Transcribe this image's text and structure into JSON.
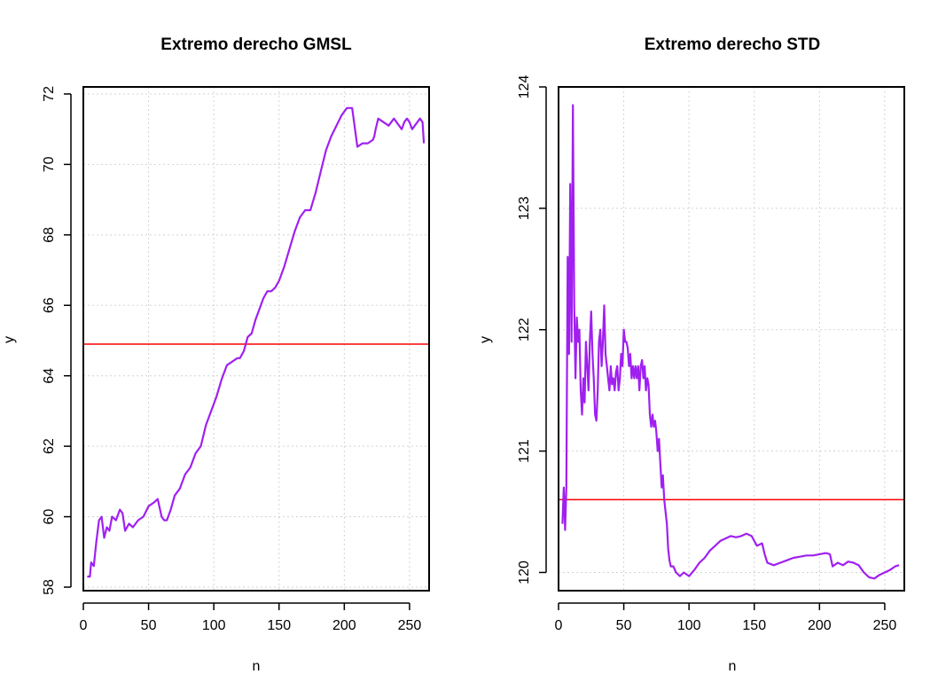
{
  "chart_data": [
    {
      "type": "line",
      "title": "Extremo derecho GMSL",
      "xlabel": "n",
      "ylabel": "y",
      "xlim": [
        0,
        265
      ],
      "ylim": [
        57.9,
        72.2
      ],
      "xticks": [
        0,
        50,
        100,
        150,
        200,
        250
      ],
      "yticks": [
        58,
        60,
        62,
        64,
        66,
        68,
        70,
        72
      ],
      "grid": true,
      "hline": {
        "y": 64.9,
        "color": "#ff0000"
      },
      "series": [
        {
          "color": "#a020f0",
          "x": [
            3,
            5,
            6,
            8,
            10,
            12,
            14,
            16,
            18,
            20,
            22,
            25,
            28,
            30,
            32,
            35,
            38,
            42,
            46,
            50,
            54,
            57,
            60,
            62,
            64,
            67,
            70,
            74,
            78,
            82,
            86,
            90,
            94,
            98,
            102,
            106,
            110,
            114,
            118,
            120,
            123,
            126,
            129,
            132,
            135,
            138,
            141,
            144,
            147,
            150,
            154,
            158,
            162,
            166,
            170,
            174,
            178,
            182,
            186,
            190,
            194,
            198,
            202,
            206,
            210,
            214,
            218,
            222,
            223,
            224,
            226,
            230,
            234,
            238,
            242,
            244,
            246,
            248,
            250,
            252,
            254,
            256,
            258,
            260,
            261
          ],
          "y": [
            58.3,
            58.3,
            58.7,
            58.6,
            59.3,
            59.9,
            60.0,
            59.4,
            59.7,
            59.6,
            60.0,
            59.9,
            60.2,
            60.1,
            59.6,
            59.8,
            59.7,
            59.9,
            60.0,
            60.3,
            60.4,
            60.5,
            60.0,
            59.9,
            59.9,
            60.2,
            60.6,
            60.8,
            61.2,
            61.4,
            61.8,
            62.0,
            62.6,
            63.0,
            63.4,
            63.9,
            64.3,
            64.4,
            64.5,
            64.5,
            64.7,
            65.1,
            65.2,
            65.6,
            65.9,
            66.2,
            66.4,
            66.4,
            66.5,
            66.7,
            67.1,
            67.6,
            68.1,
            68.5,
            68.7,
            68.7,
            69.2,
            69.8,
            70.4,
            70.8,
            71.1,
            71.4,
            71.6,
            71.6,
            70.5,
            70.6,
            70.6,
            70.7,
            70.8,
            71.0,
            71.3,
            71.2,
            71.1,
            71.3,
            71.1,
            71.0,
            71.2,
            71.3,
            71.2,
            71.0,
            71.1,
            71.2,
            71.3,
            71.2,
            70.6
          ]
        }
      ]
    },
    {
      "type": "line",
      "title": "Extremo derecho STD",
      "xlabel": "n",
      "ylabel": "y",
      "xlim": [
        0,
        265
      ],
      "ylim": [
        119.85,
        124.0
      ],
      "xticks": [
        0,
        50,
        100,
        150,
        200,
        250
      ],
      "yticks": [
        120,
        121,
        122,
        123,
        124
      ],
      "grid": true,
      "hline": {
        "y": 120.6,
        "color": "#ff0000"
      },
      "series": [
        {
          "color": "#a020f0",
          "x": [
            3,
            4,
            5,
            6,
            7,
            8,
            9,
            10,
            11,
            12,
            13,
            14,
            15,
            16,
            17,
            18,
            19,
            20,
            21,
            22,
            23,
            24,
            25,
            26,
            27,
            28,
            29,
            30,
            31,
            32,
            33,
            34,
            35,
            36,
            37,
            38,
            39,
            40,
            41,
            42,
            43,
            44,
            45,
            46,
            47,
            48,
            49,
            50,
            51,
            52,
            53,
            54,
            55,
            56,
            57,
            58,
            59,
            60,
            61,
            62,
            63,
            64,
            65,
            66,
            67,
            68,
            69,
            70,
            71,
            72,
            73,
            74,
            75,
            76,
            77,
            78,
            79,
            80,
            81,
            82,
            83,
            84,
            85,
            86,
            88,
            90,
            93,
            96,
            100,
            104,
            108,
            112,
            116,
            120,
            124,
            128,
            132,
            136,
            140,
            144,
            148,
            152,
            156,
            158,
            160,
            165,
            170,
            175,
            180,
            185,
            190,
            195,
            200,
            205,
            208,
            210,
            214,
            218,
            222,
            226,
            230,
            234,
            238,
            242,
            246,
            250,
            254,
            258,
            261
          ],
          "y": [
            120.4,
            120.7,
            120.35,
            120.7,
            122.6,
            121.8,
            123.2,
            121.9,
            123.85,
            122.2,
            121.6,
            122.1,
            121.9,
            122.0,
            121.5,
            121.3,
            121.6,
            121.4,
            121.9,
            121.7,
            121.5,
            121.9,
            122.15,
            121.8,
            121.6,
            121.3,
            121.25,
            121.5,
            121.9,
            122.0,
            121.7,
            121.9,
            122.2,
            121.8,
            121.7,
            121.6,
            121.5,
            121.7,
            121.55,
            121.6,
            121.5,
            121.65,
            121.7,
            121.5,
            121.6,
            121.8,
            121.7,
            122.0,
            121.9,
            121.9,
            121.85,
            121.7,
            121.8,
            121.6,
            121.7,
            121.6,
            121.7,
            121.6,
            121.7,
            121.5,
            121.7,
            121.75,
            121.6,
            121.7,
            121.5,
            121.6,
            121.55,
            121.3,
            121.2,
            121.3,
            121.2,
            121.25,
            121.15,
            121.0,
            121.1,
            120.9,
            120.7,
            120.8,
            120.6,
            120.5,
            120.4,
            120.2,
            120.1,
            120.05,
            120.05,
            120.0,
            119.97,
            120.0,
            119.97,
            120.02,
            120.08,
            120.12,
            120.18,
            120.22,
            120.26,
            120.28,
            120.3,
            120.29,
            120.3,
            120.32,
            120.3,
            120.22,
            120.24,
            120.15,
            120.08,
            120.06,
            120.08,
            120.1,
            120.12,
            120.13,
            120.14,
            120.14,
            120.15,
            120.16,
            120.15,
            120.05,
            120.08,
            120.06,
            120.09,
            120.08,
            120.06,
            120.0,
            119.96,
            119.95,
            119.98,
            120.0,
            120.02,
            120.05,
            120.06
          ]
        }
      ]
    }
  ]
}
